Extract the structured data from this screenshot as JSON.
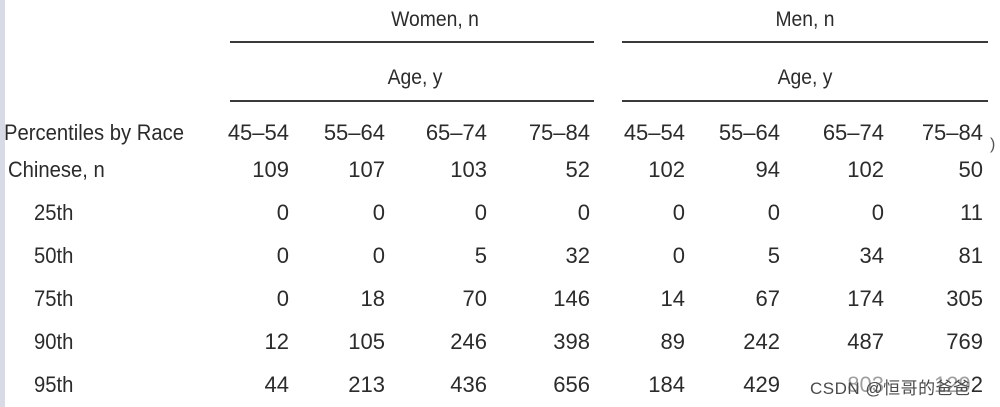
{
  "groups": {
    "women": "Women, n",
    "men": "Men, n",
    "age_women": "Age, y",
    "age_men": "Age, y"
  },
  "header": {
    "label": "Percentiles by Race",
    "ages": [
      "45–54",
      "55–64",
      "65–74",
      "75–84",
      "45–54",
      "55–64",
      "65–74",
      "75–84"
    ]
  },
  "rows": [
    {
      "label": "Chinese, n",
      "values": [
        "109",
        "107",
        "103",
        "52",
        "102",
        "94",
        "102",
        "50"
      ]
    },
    {
      "label": "25th",
      "values": [
        "0",
        "0",
        "0",
        "0",
        "0",
        "0",
        "0",
        "11"
      ]
    },
    {
      "label": "50th",
      "values": [
        "0",
        "0",
        "5",
        "32",
        "0",
        "5",
        "34",
        "81"
      ]
    },
    {
      "label": "75th",
      "values": [
        "0",
        "18",
        "70",
        "146",
        "14",
        "67",
        "174",
        "305"
      ]
    },
    {
      "label": "90th",
      "values": [
        "12",
        "105",
        "246",
        "398",
        "89",
        "242",
        "487",
        "769"
      ]
    },
    {
      "label": "95th",
      "values": [
        "44",
        "213",
        "436",
        "656",
        "184",
        "429",
        "803",
        "1292"
      ]
    }
  ],
  "watermark": "CSDN @恒哥的爸爸",
  "corner_mark": ")"
}
